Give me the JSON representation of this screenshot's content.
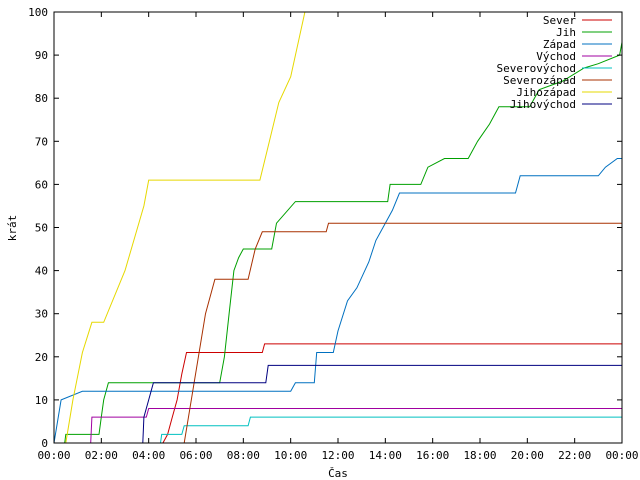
{
  "chart_data": {
    "type": "line",
    "xlabel": "Čas",
    "ylabel": "krát",
    "xlim": [
      0,
      24
    ],
    "ylim": [
      0,
      100
    ],
    "grid": false,
    "legend_position": "top-right",
    "x_ticks": [
      {
        "value": 0,
        "label": "00:00"
      },
      {
        "value": 2,
        "label": "02:00"
      },
      {
        "value": 4,
        "label": "04:00"
      },
      {
        "value": 6,
        "label": "06:00"
      },
      {
        "value": 8,
        "label": "08:00"
      },
      {
        "value": 10,
        "label": "10:00"
      },
      {
        "value": 12,
        "label": "12:00"
      },
      {
        "value": 14,
        "label": "14:00"
      },
      {
        "value": 16,
        "label": "16:00"
      },
      {
        "value": 18,
        "label": "18:00"
      },
      {
        "value": 20,
        "label": "20:00"
      },
      {
        "value": 22,
        "label": "22:00"
      },
      {
        "value": 24,
        "label": "00:00"
      }
    ],
    "y_ticks": [
      {
        "value": 0,
        "label": "0"
      },
      {
        "value": 10,
        "label": "10"
      },
      {
        "value": 20,
        "label": "20"
      },
      {
        "value": 30,
        "label": "30"
      },
      {
        "value": 40,
        "label": "40"
      },
      {
        "value": 50,
        "label": "50"
      },
      {
        "value": 60,
        "label": "60"
      },
      {
        "value": 70,
        "label": "70"
      },
      {
        "value": 80,
        "label": "80"
      },
      {
        "value": 90,
        "label": "90"
      },
      {
        "value": 100,
        "label": "100"
      }
    ],
    "series": [
      {
        "name": "Sever",
        "color": "#cc0000",
        "values": [
          [
            0,
            0
          ],
          [
            4.6,
            0
          ],
          [
            4.8,
            2
          ],
          [
            5,
            6
          ],
          [
            5.2,
            10
          ],
          [
            5.4,
            16
          ],
          [
            5.6,
            21
          ],
          [
            8.8,
            21
          ],
          [
            8.9,
            23
          ],
          [
            24,
            23
          ]
        ]
      },
      {
        "name": "Jih",
        "color": "#00a000",
        "values": [
          [
            0,
            0
          ],
          [
            0.45,
            0
          ],
          [
            0.5,
            2
          ],
          [
            1.9,
            2
          ],
          [
            2.0,
            6
          ],
          [
            2.1,
            10
          ],
          [
            2.3,
            14
          ],
          [
            7.0,
            14
          ],
          [
            7.2,
            20
          ],
          [
            7.4,
            30
          ],
          [
            7.6,
            40
          ],
          [
            7.8,
            43
          ],
          [
            8.0,
            45
          ],
          [
            9.2,
            45
          ],
          [
            9.4,
            51
          ],
          [
            10.2,
            56
          ],
          [
            14.1,
            56
          ],
          [
            14.2,
            60
          ],
          [
            15.5,
            60
          ],
          [
            15.8,
            64
          ],
          [
            16.5,
            66
          ],
          [
            17.5,
            66
          ],
          [
            17.9,
            70
          ],
          [
            18.4,
            74
          ],
          [
            18.8,
            78
          ],
          [
            20.1,
            78
          ],
          [
            20.5,
            82
          ],
          [
            21.5,
            84
          ],
          [
            22.4,
            87
          ],
          [
            23.0,
            88
          ],
          [
            23.9,
            90
          ],
          [
            24,
            93
          ]
        ]
      },
      {
        "name": "Západ",
        "color": "#0070c0",
        "values": [
          [
            0,
            0
          ],
          [
            0.3,
            10
          ],
          [
            1.2,
            12
          ],
          [
            10.0,
            12
          ],
          [
            10.2,
            14
          ],
          [
            11.0,
            14
          ],
          [
            11.1,
            21
          ],
          [
            11.8,
            21
          ],
          [
            12.0,
            26
          ],
          [
            12.4,
            33
          ],
          [
            12.8,
            36
          ],
          [
            13.3,
            42
          ],
          [
            13.6,
            47
          ],
          [
            13.9,
            50
          ],
          [
            14.3,
            54
          ],
          [
            14.6,
            58
          ],
          [
            19.5,
            58
          ],
          [
            19.7,
            62
          ],
          [
            23.0,
            62
          ],
          [
            23.3,
            64
          ],
          [
            23.8,
            66
          ],
          [
            24,
            66
          ]
        ]
      },
      {
        "name": "Východ",
        "color": "#a000a0",
        "values": [
          [
            0,
            0
          ],
          [
            1.55,
            0
          ],
          [
            1.6,
            6
          ],
          [
            3.9,
            6
          ],
          [
            4.0,
            8
          ],
          [
            24,
            8
          ]
        ]
      },
      {
        "name": "Severovýchod",
        "color": "#00c0c0",
        "values": [
          [
            0,
            0
          ],
          [
            4.5,
            0
          ],
          [
            4.55,
            2
          ],
          [
            5.4,
            2
          ],
          [
            5.5,
            4
          ],
          [
            8.2,
            4
          ],
          [
            8.3,
            6
          ],
          [
            24,
            6
          ]
        ]
      },
      {
        "name": "Severozápad",
        "color": "#a83000",
        "values": [
          [
            0,
            0
          ],
          [
            5.5,
            0
          ],
          [
            5.8,
            10
          ],
          [
            6.1,
            20
          ],
          [
            6.4,
            30
          ],
          [
            6.8,
            38
          ],
          [
            8.2,
            38
          ],
          [
            8.5,
            45
          ],
          [
            8.8,
            49
          ],
          [
            11.5,
            49
          ],
          [
            11.6,
            51
          ],
          [
            24,
            51
          ]
        ]
      },
      {
        "name": "Jihozápad",
        "color": "#e6d800",
        "values": [
          [
            0,
            0
          ],
          [
            0.5,
            0
          ],
          [
            0.8,
            10
          ],
          [
            1.2,
            21
          ],
          [
            1.6,
            28
          ],
          [
            2.1,
            28
          ],
          [
            3.0,
            40
          ],
          [
            3.8,
            55
          ],
          [
            4.0,
            61
          ],
          [
            8.7,
            61
          ],
          [
            9.1,
            70
          ],
          [
            9.5,
            79
          ],
          [
            10.0,
            85
          ],
          [
            10.6,
            100
          ]
        ]
      },
      {
        "name": "Jihovýchod",
        "color": "#000080",
        "values": [
          [
            0,
            0
          ],
          [
            3.75,
            0
          ],
          [
            3.8,
            6
          ],
          [
            4.0,
            10
          ],
          [
            4.2,
            14
          ],
          [
            8.95,
            14
          ],
          [
            9.05,
            18
          ],
          [
            24,
            18
          ]
        ]
      }
    ]
  }
}
